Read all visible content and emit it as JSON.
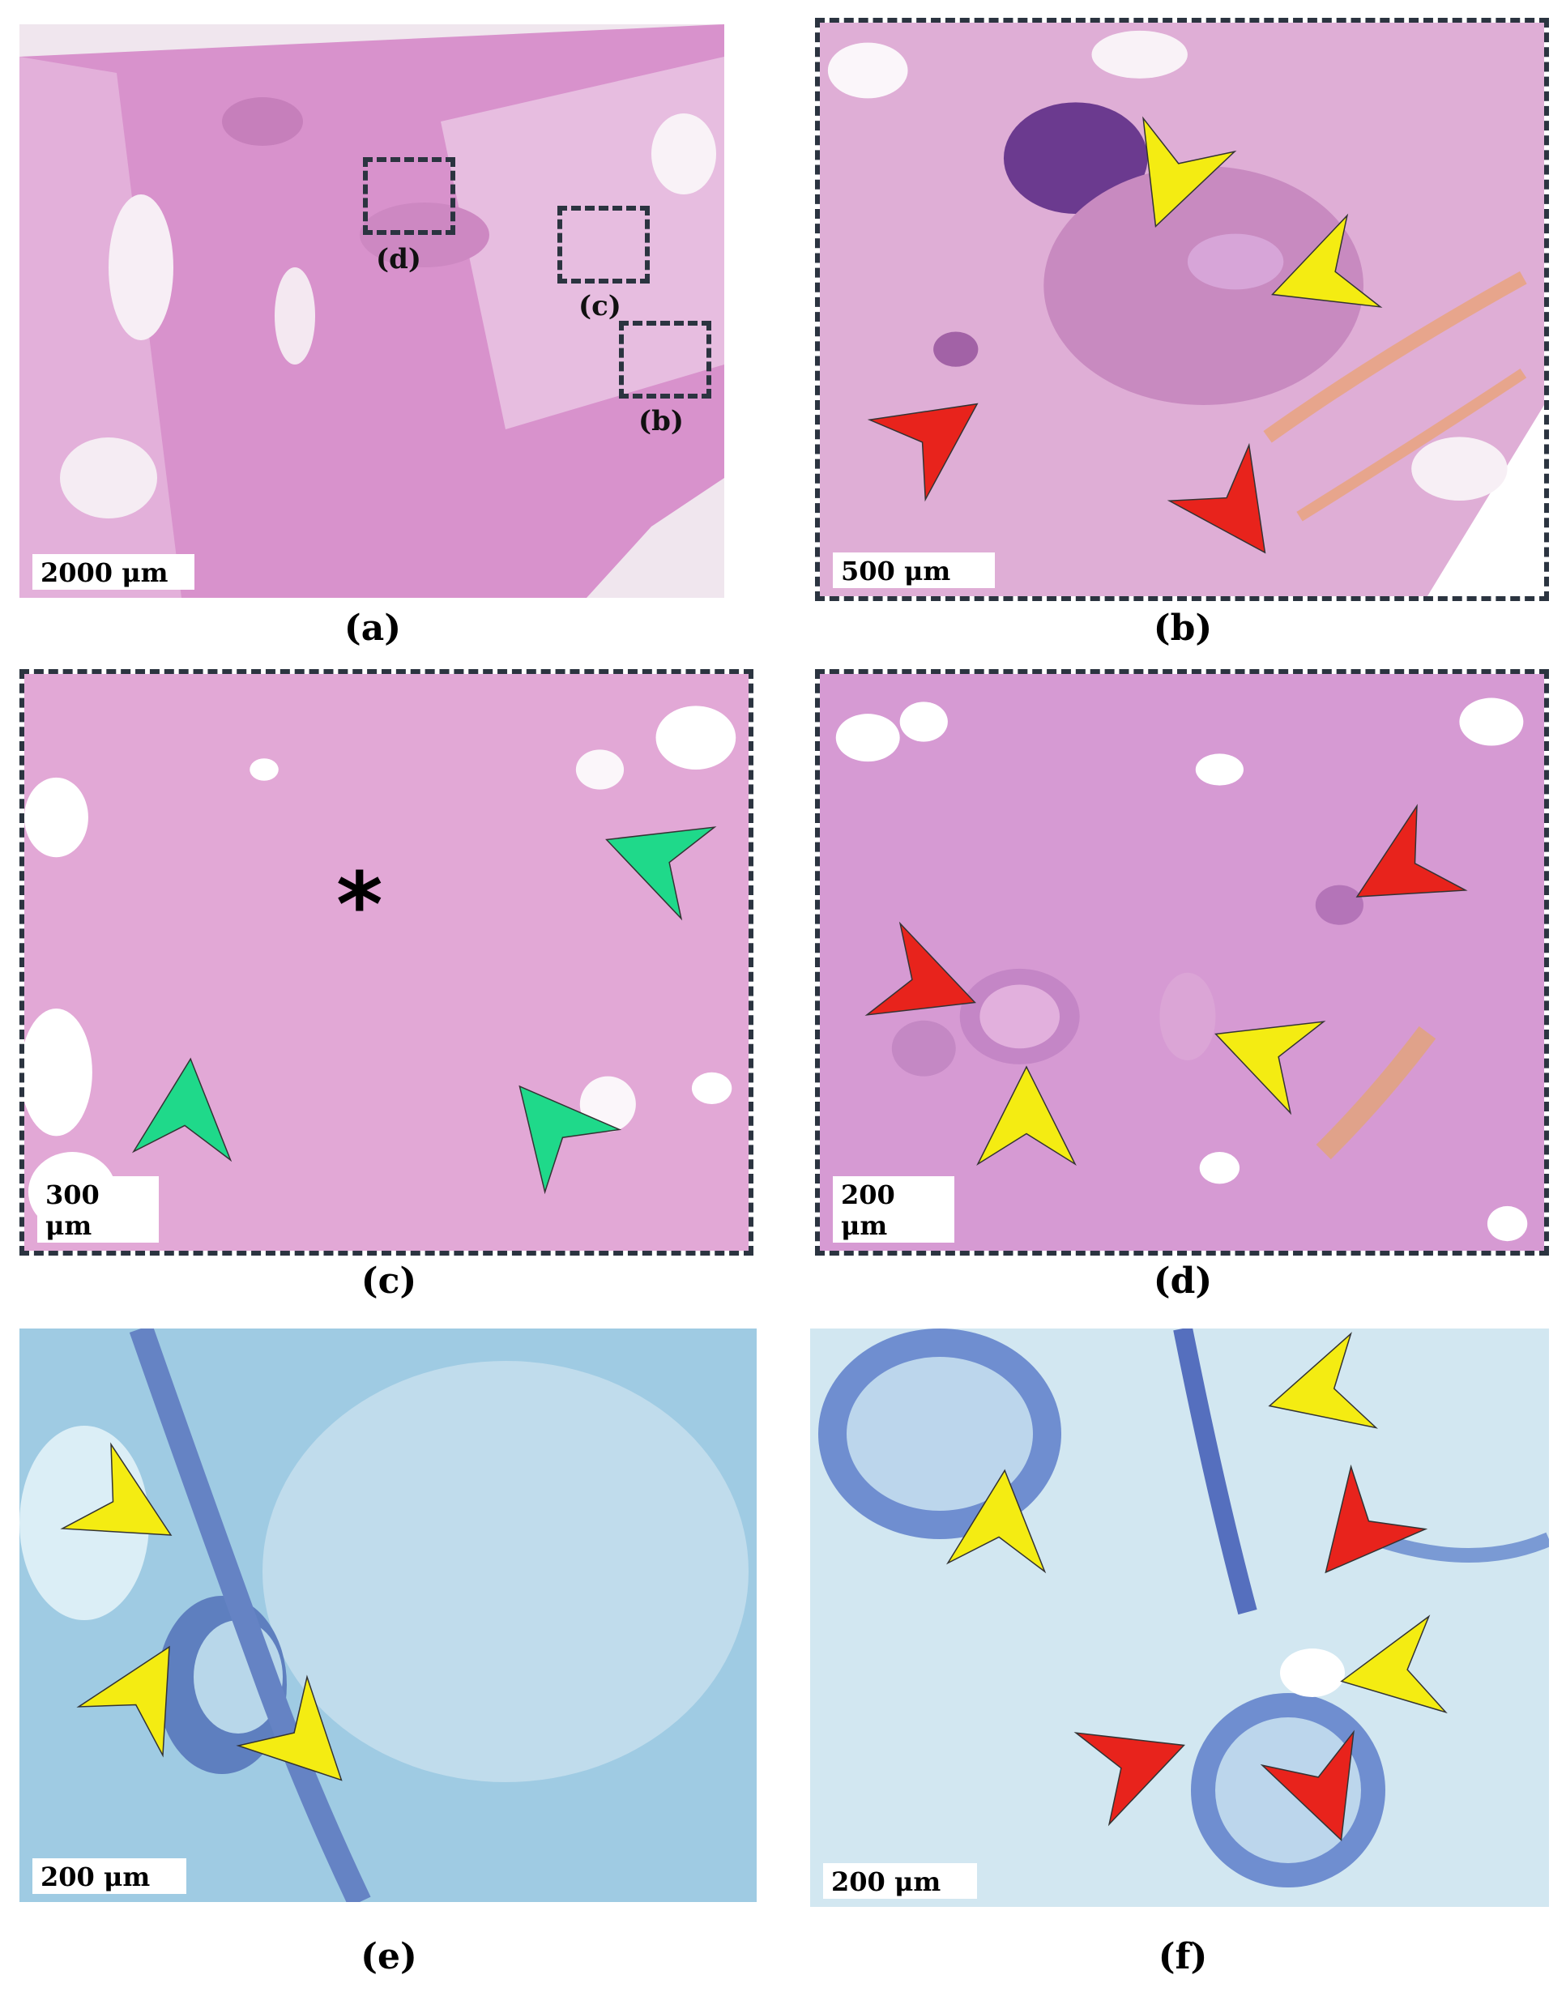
{
  "panels": {
    "a": {
      "caption": "(a)",
      "scale": "2000 μm",
      "roi": {
        "b": "(b)",
        "c": "(c)",
        "d": "(d)"
      }
    },
    "b": {
      "caption": "(b)",
      "scale": "500 μm"
    },
    "c": {
      "caption": "(c)",
      "scale": "300 μm",
      "marker": "*"
    },
    "d": {
      "caption": "(d)",
      "scale": "200 μm"
    },
    "e": {
      "caption": "(e)",
      "scale": "200 μm"
    },
    "f": {
      "caption": "(f)",
      "scale": "200 μm"
    }
  },
  "colors": {
    "he_background": "#d48fc6",
    "he_light": "#e6b3dc",
    "toluidine_background": "#a8d0e6",
    "toluidine_light": "#d2e8f2",
    "arrow_red": "#e8231c",
    "arrow_yellow": "#f4ec12",
    "arrow_green": "#1fd98a",
    "frame": "#2b3440"
  }
}
